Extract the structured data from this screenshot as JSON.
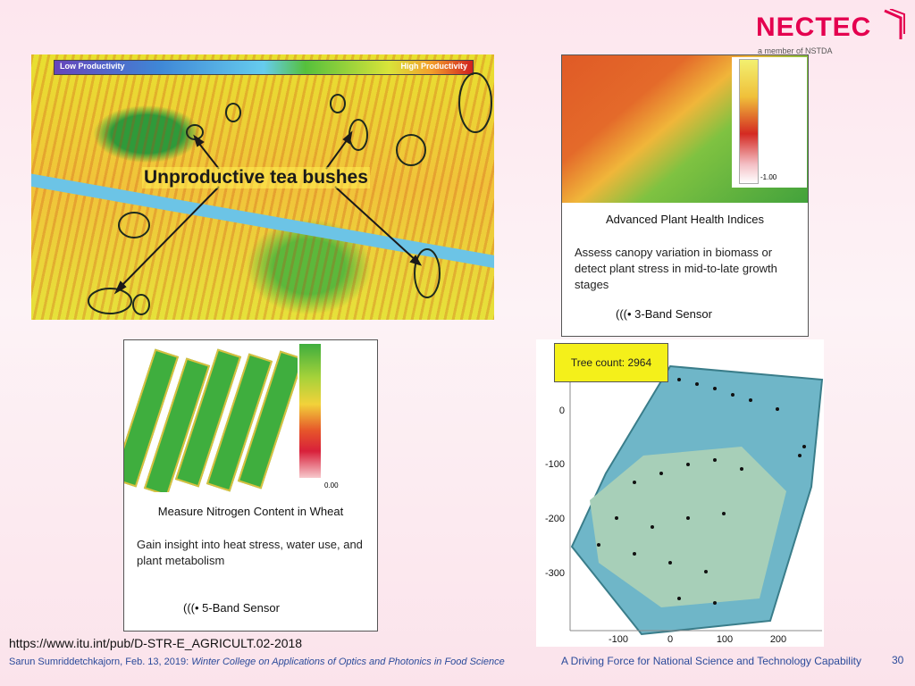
{
  "logo": {
    "name": "NECTEC",
    "tagline": "a member of NSTDA"
  },
  "tea_panel": {
    "scale_low": "Low Productivity",
    "scale_high": "High Productivity",
    "label": "Unproductive tea bushes"
  },
  "health_panel": {
    "scale_min": "-1.00",
    "title": "Advanced Plant Health Indices",
    "description": "Assess canopy variation in biomass or detect plant stress in mid-to-late growth stages",
    "sensor": "3-Band Sensor"
  },
  "wheat_panel": {
    "scale_min": "0.00",
    "title": "Measure Nitrogen Content in Wheat",
    "description": "Gain insight into heat stress, water use, and plant metabolism",
    "sensor": "5-Band Sensor"
  },
  "tree_panel": {
    "badge": "Tree count: 2964",
    "y_ticks": [
      "0",
      "-100",
      "-200",
      "-300"
    ],
    "x_ticks": [
      "-100",
      "0",
      "100",
      "200"
    ]
  },
  "source_url": "https://www.itu.int/pub/D-STR-E_AGRICULT.02-2018",
  "footer": {
    "author": "Sarun Sumriddetchkajorn, Feb. 13, 2019:",
    "course": "Winter College on Applications of Optics and Photonics in Food Science",
    "tagline": "A Driving Force for National Science and Technology Capability",
    "page": "30"
  },
  "colors": {
    "brand": "#e4004f",
    "footer_text": "#2a4a9a",
    "badge": "#f4f01a"
  },
  "icons": {
    "sensor": "wireless-signal-icon",
    "logo_mark": "nectec-chevron-logo-icon"
  }
}
